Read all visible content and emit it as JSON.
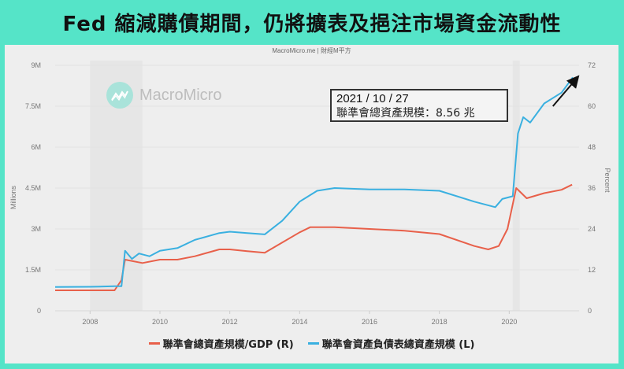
{
  "title": "Fed 縮減購債期間，仍將擴表及挹注市場資金流動性",
  "source": "MacroMicro.me | 財經M平方",
  "watermark": "MacroMicro",
  "annotation": {
    "date": "2021 / 10 / 27",
    "value_text": "聯準會總資產規模：8.56 兆"
  },
  "colors": {
    "frame": "#55e4c8",
    "panel": "#eeeeee",
    "blue": "#3ab0e0",
    "red": "#e8604a"
  },
  "chart_data": {
    "type": "line",
    "title": "Fed 縮減購債期間，仍將擴表及挹注市場資金流動性",
    "xlabel": "",
    "ylabel_left": "Millions",
    "ylabel_right": "Percent",
    "x_ticks": [
      "2008",
      "2010",
      "2012",
      "2014",
      "2016",
      "2018",
      "2020"
    ],
    "y_left_ticks": [
      "0",
      "1.5M",
      "3M",
      "4.5M",
      "6M",
      "7.5M",
      "9M"
    ],
    "y_right_ticks": [
      "0",
      "12",
      "24",
      "36",
      "48",
      "60",
      "72"
    ],
    "ylim_left": [
      0,
      9
    ],
    "ylim_right": [
      0,
      72
    ],
    "xlim": [
      2007,
      2022
    ],
    "grid": true,
    "legend_position": "bottom",
    "series": [
      {
        "name": "聯準會總資產規模/GDP (R)",
        "axis": "right",
        "unit": "percent",
        "x": [
          2007.0,
          2008.0,
          2008.7,
          2008.9,
          2009.0,
          2009.5,
          2010.0,
          2010.5,
          2011.0,
          2011.7,
          2012.0,
          2012.5,
          2013.0,
          2013.5,
          2014.0,
          2014.3,
          2015.0,
          2016.0,
          2017.0,
          2018.0,
          2019.0,
          2019.4,
          2019.7,
          2019.95,
          2020.2,
          2020.5,
          2021.0,
          2021.5,
          2021.8
        ],
        "values": [
          6.0,
          6.0,
          6.0,
          9.0,
          15.0,
          14.0,
          15.0,
          15.0,
          16.0,
          18.0,
          18.0,
          17.5,
          17.0,
          20.0,
          23.0,
          24.5,
          24.5,
          24.0,
          23.5,
          22.5,
          19.0,
          18.0,
          19.0,
          24.0,
          36.0,
          33.0,
          34.5,
          35.5,
          37.0
        ]
      },
      {
        "name": "聯準會資產負債表總資產規模 (L)",
        "axis": "left",
        "unit": "millions",
        "x": [
          2007.0,
          2008.0,
          2008.7,
          2008.9,
          2009.0,
          2009.2,
          2009.4,
          2009.7,
          2010.0,
          2010.5,
          2011.0,
          2011.7,
          2012.0,
          2012.5,
          2013.0,
          2013.5,
          2014.0,
          2014.5,
          2015.0,
          2016.0,
          2017.0,
          2018.0,
          2019.0,
          2019.6,
          2019.8,
          2020.1,
          2020.25,
          2020.4,
          2020.6,
          2021.0,
          2021.5,
          2021.82
        ],
        "values": [
          0.87,
          0.88,
          0.9,
          0.9,
          2.2,
          1.9,
          2.1,
          2.0,
          2.2,
          2.3,
          2.6,
          2.85,
          2.9,
          2.85,
          2.8,
          3.3,
          4.0,
          4.4,
          4.5,
          4.45,
          4.45,
          4.4,
          4.0,
          3.8,
          4.1,
          4.2,
          6.5,
          7.1,
          6.9,
          7.6,
          8.0,
          8.56
        ]
      }
    ],
    "annotations": [
      {
        "text": "2021 / 10 / 27",
        "type": "box"
      },
      {
        "text": "聯準會總資產規模：8.56 兆",
        "type": "box"
      },
      {
        "type": "arrow",
        "direction": "up-right",
        "near": "2021 end of blue line"
      }
    ]
  }
}
